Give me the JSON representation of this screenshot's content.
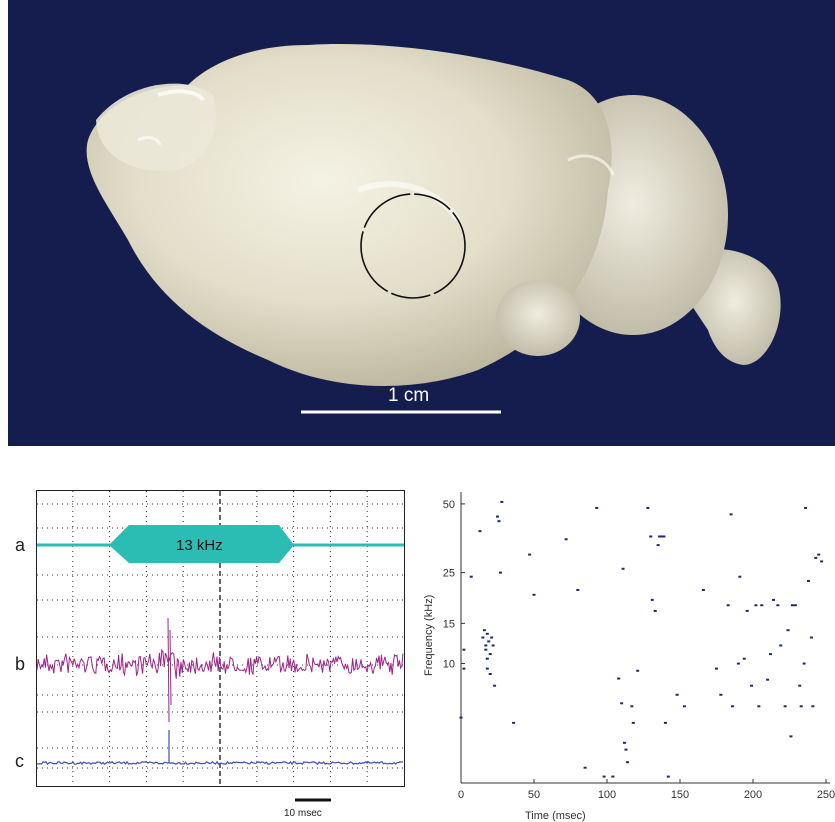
{
  "photo": {
    "scale_label": "1 cm",
    "background_color": "#141d4e",
    "brain_color": "#e6e2d0"
  },
  "traces": {
    "row_labels": [
      "a",
      "b",
      "c"
    ],
    "stimulus_label": "13 kHz",
    "scalebar_label": "10 msec",
    "colors": {
      "stimulus": "#2bbcb4",
      "extracellular": "#a0228c",
      "spikes": "#3d4fb5"
    }
  },
  "chart_data": {
    "type": "scatter",
    "xlabel": "Time (msec)",
    "ylabel": "Frequency (kHz)",
    "xlim": [
      0,
      250
    ],
    "x_ticks": [
      0,
      50,
      100,
      150,
      200,
      250
    ],
    "y_ticks": [
      10,
      15,
      25,
      50
    ],
    "y_scale": "log",
    "ylim": [
      3,
      52
    ],
    "marker_color": "#1f2a6b",
    "points": [
      [
        0,
        5.8
      ],
      [
        2,
        9.5
      ],
      [
        2,
        11.5
      ],
      [
        7,
        24
      ],
      [
        13,
        38
      ],
      [
        15,
        13
      ],
      [
        16,
        14
      ],
      [
        17,
        12
      ],
      [
        17,
        11.5
      ],
      [
        18,
        13.5
      ],
      [
        18,
        10.5
      ],
      [
        18,
        9.5
      ],
      [
        19,
        12.5
      ],
      [
        20,
        11
      ],
      [
        20,
        9
      ],
      [
        21,
        13
      ],
      [
        22,
        12
      ],
      [
        23,
        8
      ],
      [
        25,
        44
      ],
      [
        26,
        42
      ],
      [
        27,
        25
      ],
      [
        28,
        51
      ],
      [
        36,
        5.5
      ],
      [
        47,
        30
      ],
      [
        50,
        20
      ],
      [
        72,
        35
      ],
      [
        80,
        21
      ],
      [
        85,
        3.5
      ],
      [
        93,
        48
      ],
      [
        98,
        3.2
      ],
      [
        104,
        3.2
      ],
      [
        108,
        8.6
      ],
      [
        110,
        6.7
      ],
      [
        111,
        26
      ],
      [
        112,
        4.5
      ],
      [
        113,
        4.2
      ],
      [
        114,
        3.7
      ],
      [
        117,
        6.5
      ],
      [
        118,
        5.5
      ],
      [
        121,
        9.3
      ],
      [
        128,
        48
      ],
      [
        130,
        36
      ],
      [
        131,
        19
      ],
      [
        133,
        17
      ],
      [
        135,
        33
      ],
      [
        136,
        36
      ],
      [
        138,
        36
      ],
      [
        139,
        36
      ],
      [
        140,
        5.5
      ],
      [
        142,
        3.2
      ],
      [
        148,
        7.3
      ],
      [
        153,
        6.5
      ],
      [
        166,
        21
      ],
      [
        175,
        9.5
      ],
      [
        178,
        7.3
      ],
      [
        183,
        18
      ],
      [
        185,
        45
      ],
      [
        186,
        6.5
      ],
      [
        190,
        10
      ],
      [
        191,
        24
      ],
      [
        194,
        10.5
      ],
      [
        196,
        17
      ],
      [
        199,
        8
      ],
      [
        202,
        18
      ],
      [
        204,
        6.5
      ],
      [
        206,
        18
      ],
      [
        210,
        8.5
      ],
      [
        212,
        11
      ],
      [
        214,
        19
      ],
      [
        217,
        18
      ],
      [
        219,
        12
      ],
      [
        222,
        6.5
      ],
      [
        224,
        14
      ],
      [
        226,
        4.8
      ],
      [
        227,
        18
      ],
      [
        229,
        18
      ],
      [
        232,
        8
      ],
      [
        233,
        6.5
      ],
      [
        235,
        10
      ],
      [
        236,
        48
      ],
      [
        238,
        23
      ],
      [
        240,
        13
      ],
      [
        241,
        6.5
      ],
      [
        243,
        29
      ],
      [
        245,
        30
      ],
      [
        247,
        28
      ]
    ]
  }
}
